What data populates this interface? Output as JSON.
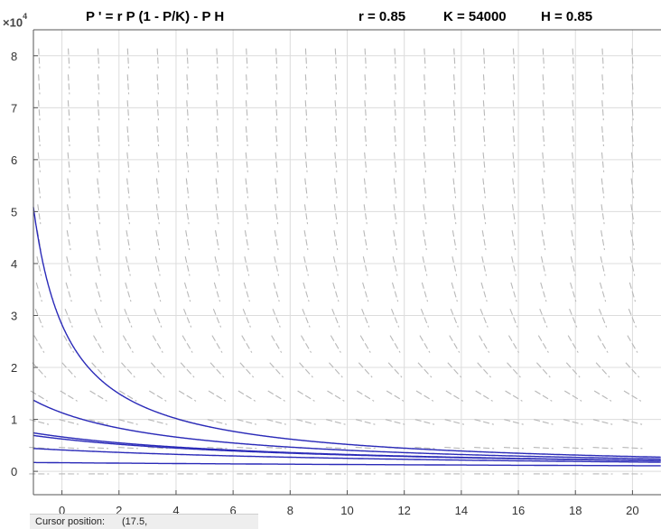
{
  "header": {
    "exponent_label": "×10",
    "exponent_power": "4",
    "equation": "P ' = r P (1 - P/K) - P H",
    "param_r": "r = 0.85",
    "param_K": "K = 54000",
    "param_H": "H = 0.85"
  },
  "status": {
    "cursor_label": "Cursor position:",
    "cursor_value": "(17.5,"
  },
  "chart_data": {
    "type": "line",
    "title": "P ' = r P (1 - P/K) - P H",
    "xlim": [
      -1,
      21
    ],
    "ylim": [
      -0.45,
      8.5
    ],
    "y_multiplier": "×10^4",
    "x_ticks": [
      "0",
      "2",
      "4",
      "6",
      "8",
      "10",
      "12",
      "14",
      "16",
      "18",
      "20"
    ],
    "y_ticks": [
      "0",
      "1",
      "2",
      "3",
      "4",
      "5",
      "6",
      "7",
      "8"
    ],
    "grid": true,
    "direction_field": true,
    "params": {
      "r": 0.85,
      "K": 54000,
      "H": 0.85
    },
    "series": [
      {
        "P0": 50860
      },
      {
        "P0": 13700
      },
      {
        "P0": 7400
      },
      {
        "P0": 6900
      },
      {
        "P0": 4400
      },
      {
        "P0": 1700
      }
    ],
    "colors": {
      "curve": "#2a2ab8",
      "field": "#b8b8b8",
      "grid": "#dcdcdc"
    }
  }
}
